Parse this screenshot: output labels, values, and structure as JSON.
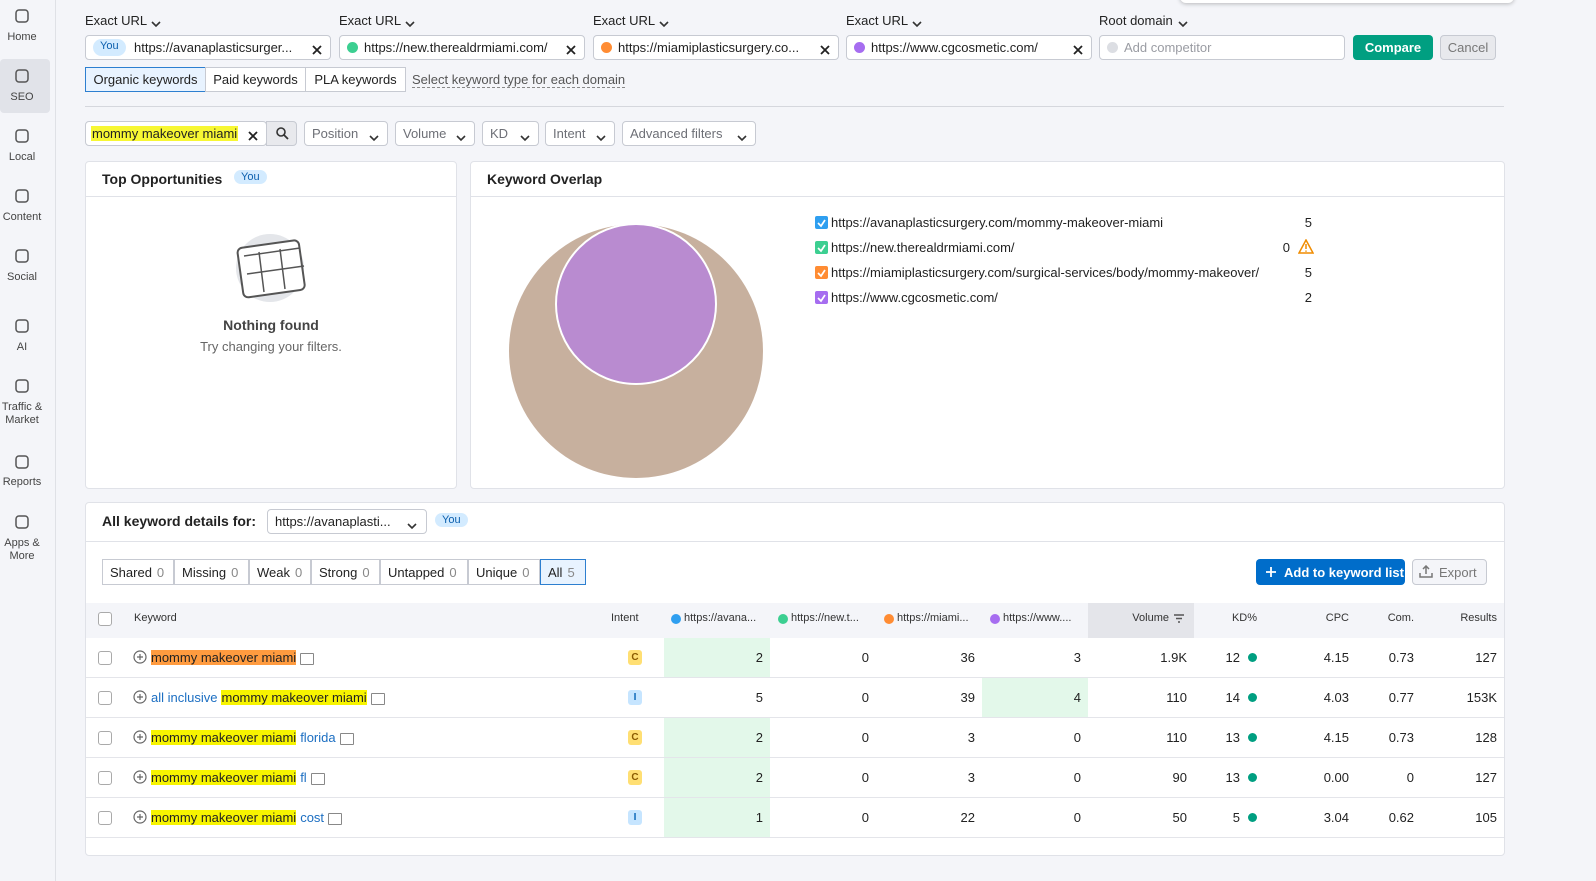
{
  "sidebar": [
    {
      "label": "Home"
    },
    {
      "label": "SEO",
      "active": true
    },
    {
      "label": "Local"
    },
    {
      "label": "Content"
    },
    {
      "label": "Social"
    },
    {
      "label": "AI"
    },
    {
      "label": "Traffic & Market"
    },
    {
      "label": "Reports"
    },
    {
      "label": "Apps & More"
    }
  ],
  "domains": [
    {
      "type": "Exact URL",
      "badge": "You",
      "url": "https://avanaplasticsurger...",
      "color": "#2f9ff0"
    },
    {
      "type": "Exact URL",
      "url": "https://new.therealdrmiami.com/",
      "color": "#3ccf91"
    },
    {
      "type": "Exact URL",
      "url": "https://miamiplasticsurgery.co...",
      "color": "#ff8c33"
    },
    {
      "type": "Exact URL",
      "url": "https://www.cgcosmetic.com/",
      "color": "#a66df0"
    }
  ],
  "root_domain": {
    "type": "Root domain",
    "placeholder": "Add competitor"
  },
  "buttons": {
    "compare": "Compare",
    "cancel": "Cancel"
  },
  "keyword_types": [
    {
      "label": "Organic keywords",
      "selected": true
    },
    {
      "label": "Paid keywords"
    },
    {
      "label": "PLA keywords"
    }
  ],
  "keyword_type_hint": "Select keyword type for each domain",
  "search": "mommy makeover miami",
  "filters": [
    "Position",
    "Volume",
    "KD",
    "Intent",
    "Advanced filters"
  ],
  "top_opportunities": {
    "title": "Top Opportunities",
    "badge": "You",
    "empty_title": "Nothing found",
    "empty_text": "Try changing your filters."
  },
  "keyword_overlap": {
    "title": "Keyword Overlap",
    "legend": [
      {
        "url": "https://avanaplasticsurgery.com/mommy-makeover-miami",
        "count": 5
      },
      {
        "url": "https://new.therealdrmiami.com/",
        "count": 0,
        "warning": true
      },
      {
        "url": "https://miamiplasticsurgery.com/surgical-services/body/mommy-makeover/",
        "count": 5
      },
      {
        "url": "https://www.cgcosmetic.com/",
        "count": 2
      }
    ]
  },
  "details": {
    "title": "All keyword details for:",
    "domain": "https://avanaplasti...",
    "badge": "You",
    "tabs": [
      {
        "label": "Shared",
        "count": 0
      },
      {
        "label": "Missing",
        "count": 0
      },
      {
        "label": "Weak",
        "count": 0
      },
      {
        "label": "Strong",
        "count": 0
      },
      {
        "label": "Untapped",
        "count": 0
      },
      {
        "label": "Unique",
        "count": 0
      },
      {
        "label": "All",
        "count": 5,
        "selected": true
      }
    ],
    "add_button": "Add to keyword list",
    "export": "Export"
  },
  "table": {
    "columns": [
      "Keyword",
      "Intent",
      "https://avana...",
      "https://new.t...",
      "https://miami...",
      "https://www....",
      "Volume",
      "KD%",
      "CPC",
      "Com.",
      "Results"
    ],
    "rows": [
      {
        "keyword": [
          {
            "text": "mommy makeover miami",
            "highlight": "orange"
          }
        ],
        "intent": "C",
        "positions": [
          2,
          0,
          36,
          3
        ],
        "best": 0,
        "volume": {
          "value": 1900,
          "label": "1.9K"
        },
        "kd": 12,
        "cpc": 4.15,
        "com": 0.73,
        "results": 127
      },
      {
        "keyword": [
          {
            "text": "all inclusive"
          },
          {
            "text": "mommy makeover miami",
            "highlight": "yellow"
          }
        ],
        "intent": "I",
        "positions": [
          5,
          0,
          39,
          4
        ],
        "best": 3,
        "volume": 110,
        "kd": 14,
        "cpc": 4.03,
        "com": 0.77,
        "results": {
          "value": 153000,
          "label": "153K"
        }
      },
      {
        "keyword": [
          {
            "text": "mommy makeover miami",
            "highlight": "yellow"
          },
          {
            "text": "florida"
          }
        ],
        "intent": "C",
        "positions": [
          2,
          0,
          3,
          0
        ],
        "best": 0,
        "volume": 110,
        "kd": 13,
        "cpc": 4.15,
        "com": 0.73,
        "results": 128
      },
      {
        "keyword": [
          {
            "text": "mommy makeover miami",
            "highlight": "yellow"
          },
          {
            "text": "fl"
          }
        ],
        "intent": "C",
        "positions": [
          2,
          0,
          3,
          0
        ],
        "best": 0,
        "volume": 90,
        "kd": 13,
        "cpc": {
          "value": 0,
          "label": "0.00"
        },
        "com": 0,
        "results": 127
      },
      {
        "keyword": [
          {
            "text": "mommy makeover miami",
            "highlight": "yellow"
          },
          {
            "text": "cost"
          }
        ],
        "intent": "I",
        "positions": [
          1,
          0,
          22,
          0
        ],
        "best": 0,
        "volume": 50,
        "kd": 5,
        "cpc": 3.04,
        "com": 0.62,
        "results": 105
      }
    ]
  }
}
